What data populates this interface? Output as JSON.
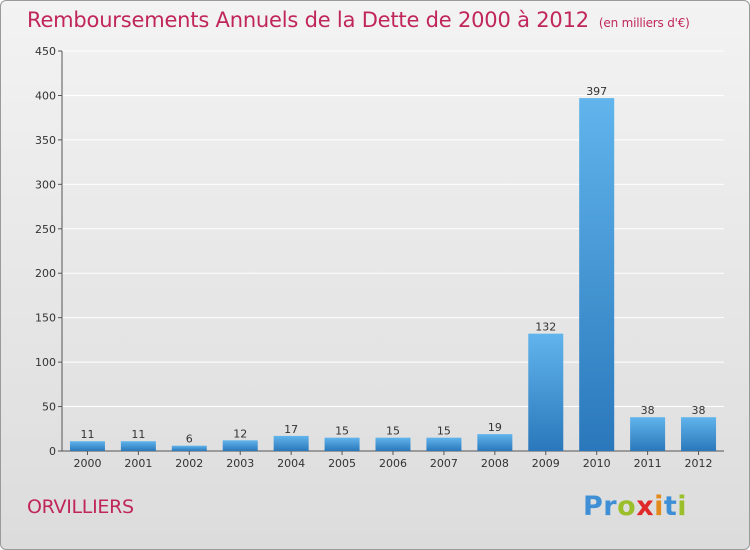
{
  "title": "Remboursements Annuels de la Dette de 2000 à 2012",
  "subtitle": "(en milliers d'€)",
  "commune": "ORVILLIERS",
  "logo": {
    "text": "Proxiti",
    "letters": [
      {
        "ch": "P",
        "color": "#3e8fd6"
      },
      {
        "ch": "r",
        "color": "#3e8fd6"
      },
      {
        "ch": "o",
        "color": "#9bbf2b"
      },
      {
        "ch": "x",
        "color": "#e02a2a"
      },
      {
        "ch": "i",
        "color": "#e38a1c"
      },
      {
        "ch": "t",
        "color": "#3e8fd6"
      },
      {
        "ch": "i",
        "color": "#9bbf2b"
      }
    ]
  },
  "colors": {
    "bar_light": "#61b4ec",
    "bar_dark": "#2a78bb",
    "title": "#c0265b",
    "grid": "#ffffff"
  },
  "chart_data": {
    "type": "bar",
    "categories": [
      "2000",
      "2001",
      "2002",
      "2003",
      "2004",
      "2005",
      "2006",
      "2007",
      "2008",
      "2009",
      "2010",
      "2011",
      "2012"
    ],
    "values": [
      11,
      11,
      6,
      12,
      17,
      15,
      15,
      15,
      19,
      132,
      397,
      38,
      38
    ],
    "ylim": [
      0,
      450
    ],
    "yticks": [
      0,
      50,
      100,
      150,
      200,
      250,
      300,
      350,
      400,
      450
    ],
    "grid": true,
    "data_labels": true
  }
}
